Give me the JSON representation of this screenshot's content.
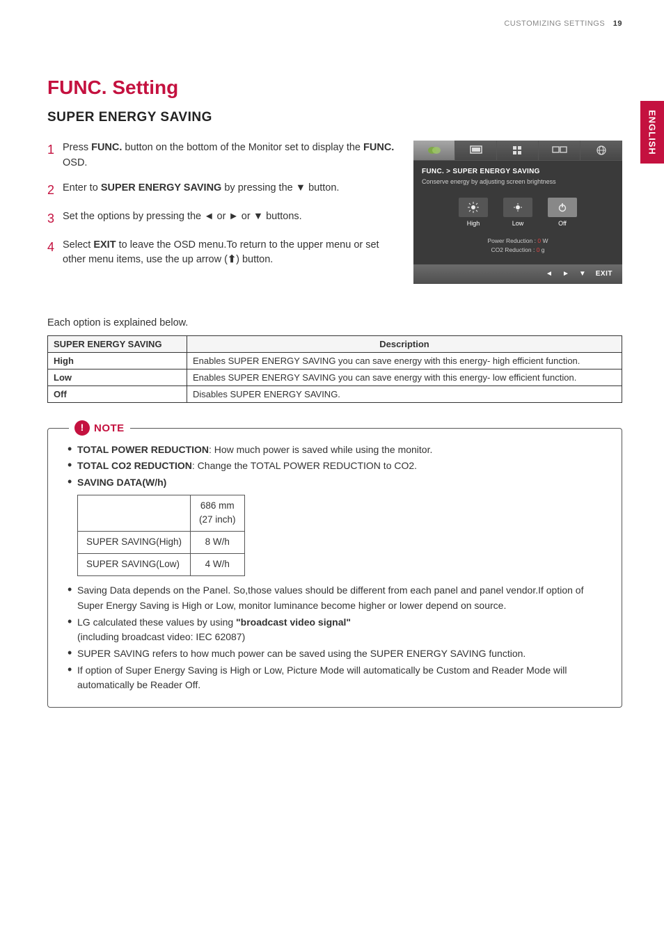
{
  "header": {
    "section": "CUSTOMIZING SETTINGS",
    "page": "19"
  },
  "side_tab": "ENGLISH",
  "title": "FUNC. Setting",
  "subtitle": "SUPER ENERGY SAVING",
  "steps": [
    {
      "num": "1",
      "html": "Press <b>FUNC.</b> button on the bottom of the Monitor set to display the <b>FUNC.</b> OSD."
    },
    {
      "num": "2",
      "html": "Enter to <b>SUPER ENERGY SAVING</b> by pressing the ▼ button."
    },
    {
      "num": "3",
      "html": "Set the options by pressing the ◄ or ► or ▼ buttons."
    },
    {
      "num": "4",
      "html": "Select <b>EXIT</b> to leave the OSD menu.To return to the upper menu or set other menu items, use the up arrow (<b>⬆</b>) button."
    }
  ],
  "osd": {
    "breadcrumb_prefix": "FUNC.  >  ",
    "breadcrumb_item": "SUPER ENERGY SAVING",
    "desc": "Conserve energy by adjusting screen brightness",
    "options": [
      {
        "label": "High",
        "selected": false
      },
      {
        "label": "Low",
        "selected": false
      },
      {
        "label": "Off",
        "selected": true
      }
    ],
    "stat1_label": "Power Reduction :",
    "stat1_val": "0",
    "stat1_unit": "W",
    "stat2_label": "CO2 Reduction :",
    "stat2_val": "0",
    "stat2_unit": "g",
    "footer_exit": "EXIT"
  },
  "explain_intro": "Each option is explained below.",
  "option_table": {
    "h1": "SUPER ENERGY SAVING",
    "h2": "Description",
    "rows": [
      {
        "k": "High",
        "v": "Enables SUPER ENERGY SAVING you can save energy with this energy- high efficient function."
      },
      {
        "k": "Low",
        "v": "Enables SUPER ENERGY SAVING you can save energy with this energy- low efficient function."
      },
      {
        "k": "Off",
        "v": "Disables SUPER ENERGY SAVING."
      }
    ]
  },
  "note": {
    "label": "NOTE",
    "lines_top": [
      "<b>TOTAL POWER REDUCTION</b>: How much power is saved while using the monitor.",
      "<b>TOTAL CO2 REDUCTION</b>: Change the TOTAL POWER REDUCTION to CO2.",
      "<b>SAVING DATA(W/h)</b>"
    ],
    "saving_table": {
      "col_header": "686 mm\n(27 inch)",
      "rows": [
        {
          "k": "SUPER SAVING(High)",
          "v": "8 W/h"
        },
        {
          "k": "SUPER SAVING(Low)",
          "v": "4 W/h"
        }
      ]
    },
    "lines_bottom": [
      "Saving Data depends on the Panel. So,those values should be different from each panel and panel vendor.If option of Super Energy Saving is High or Low, monitor luminance become higher or lower depend on source.",
      "LG calculated these values by using <b>\"broadcast video signal\"</b><br>(including broadcast video: IEC 62087)",
      "SUPER SAVING refers to how much power can be saved using the SUPER ENERGY SAVING function.",
      "If option of Super Energy Saving is High or Low, Picture Mode will automatically be Custom and Reader Mode will automatically be Reader Off."
    ]
  },
  "colors": {
    "accent": "#c4113f",
    "osd_bg": "#3a3a3a",
    "border": "#333333"
  }
}
